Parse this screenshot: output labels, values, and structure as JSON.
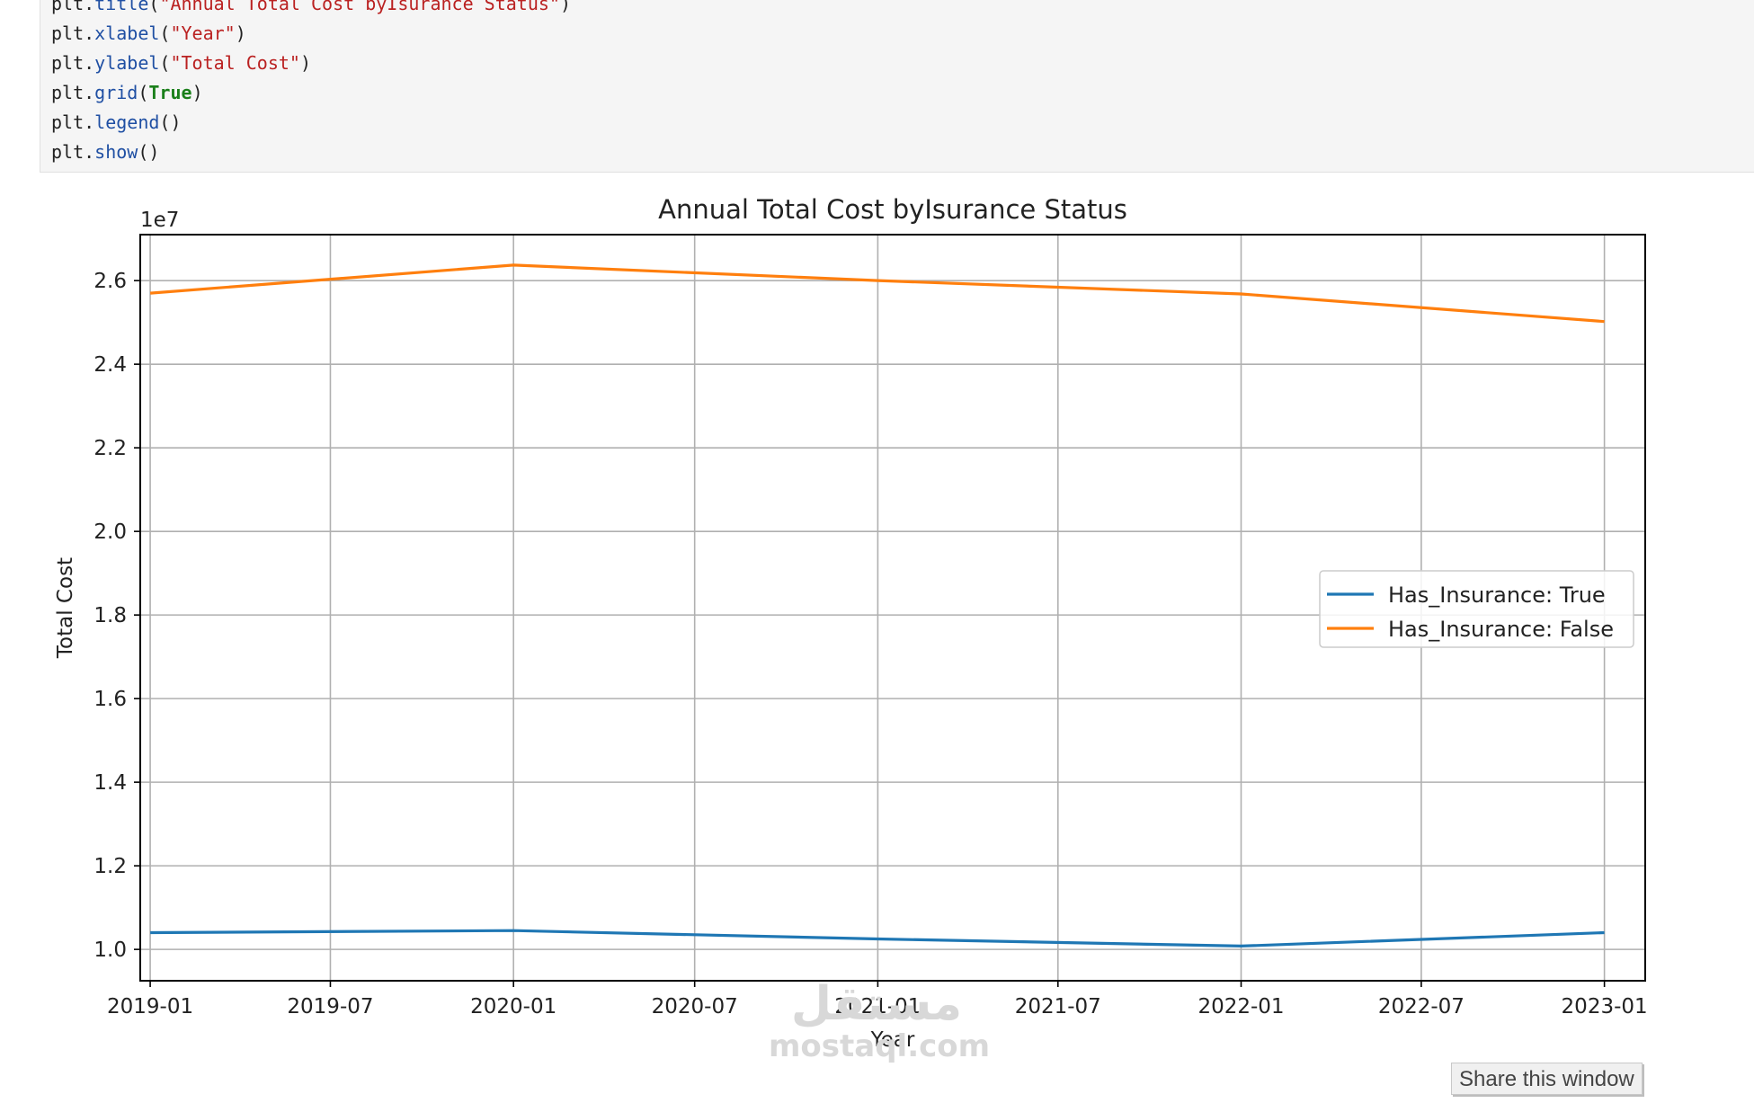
{
  "code_cell": {
    "lines": [
      [
        {
          "t": "plt",
          "c": "obj"
        },
        {
          "t": ".",
          "c": "punc"
        },
        {
          "t": "title",
          "c": "attr"
        },
        {
          "t": "(",
          "c": "punc"
        },
        {
          "t": "\"Annual Total Cost byIsurance Status\"",
          "c": "str"
        },
        {
          "t": ")",
          "c": "punc"
        }
      ],
      [
        {
          "t": "plt",
          "c": "obj"
        },
        {
          "t": ".",
          "c": "punc"
        },
        {
          "t": "xlabel",
          "c": "attr"
        },
        {
          "t": "(",
          "c": "punc"
        },
        {
          "t": "\"Year\"",
          "c": "str"
        },
        {
          "t": ")",
          "c": "punc"
        }
      ],
      [
        {
          "t": "plt",
          "c": "obj"
        },
        {
          "t": ".",
          "c": "punc"
        },
        {
          "t": "ylabel",
          "c": "attr"
        },
        {
          "t": "(",
          "c": "punc"
        },
        {
          "t": "\"Total Cost\"",
          "c": "str"
        },
        {
          "t": ")",
          "c": "punc"
        }
      ],
      [
        {
          "t": "plt",
          "c": "obj"
        },
        {
          "t": ".",
          "c": "punc"
        },
        {
          "t": "grid",
          "c": "attr"
        },
        {
          "t": "(",
          "c": "punc"
        },
        {
          "t": "True",
          "c": "kw"
        },
        {
          "t": ")",
          "c": "punc"
        }
      ],
      [
        {
          "t": "plt",
          "c": "obj"
        },
        {
          "t": ".",
          "c": "punc"
        },
        {
          "t": "legend",
          "c": "attr"
        },
        {
          "t": "()",
          "c": "punc"
        }
      ],
      [
        {
          "t": "plt",
          "c": "obj"
        },
        {
          "t": ".",
          "c": "punc"
        },
        {
          "t": "show",
          "c": "attr"
        },
        {
          "t": "()",
          "c": "punc"
        }
      ]
    ]
  },
  "chart_data": {
    "type": "line",
    "title": "Annual Total Cost byIsurance Status",
    "xlabel": "Year",
    "ylabel": "Total Cost",
    "y_offset_label": "1e7",
    "x": [
      "2019-01",
      "2020-01",
      "2021-01",
      "2022-01",
      "2023-01"
    ],
    "x_ticks": [
      "2019-01",
      "2019-07",
      "2020-01",
      "2020-07",
      "2021-01",
      "2021-07",
      "2022-01",
      "2022-07",
      "2023-01"
    ],
    "y_ticks": [
      "1.0",
      "1.2",
      "1.4",
      "1.6",
      "1.8",
      "2.0",
      "2.2",
      "2.4",
      "2.6"
    ],
    "ylim": [
      0.925,
      2.71
    ],
    "y_scale_note": "values in units of 1e7",
    "grid": true,
    "legend_position": "center-right",
    "series": [
      {
        "name": "Has_Insurance: True",
        "color": "#1f77b4",
        "values": [
          1.04,
          1.045,
          1.025,
          1.008,
          1.04
        ]
      },
      {
        "name": "Has_Insurance: False",
        "color": "#ff7f0e",
        "values": [
          2.57,
          2.637,
          2.6,
          2.568,
          2.502
        ]
      }
    ]
  },
  "share_button": {
    "label": "Share this window"
  },
  "watermark": {
    "arabic": "مستقل",
    "latin": "mostaql.com"
  }
}
